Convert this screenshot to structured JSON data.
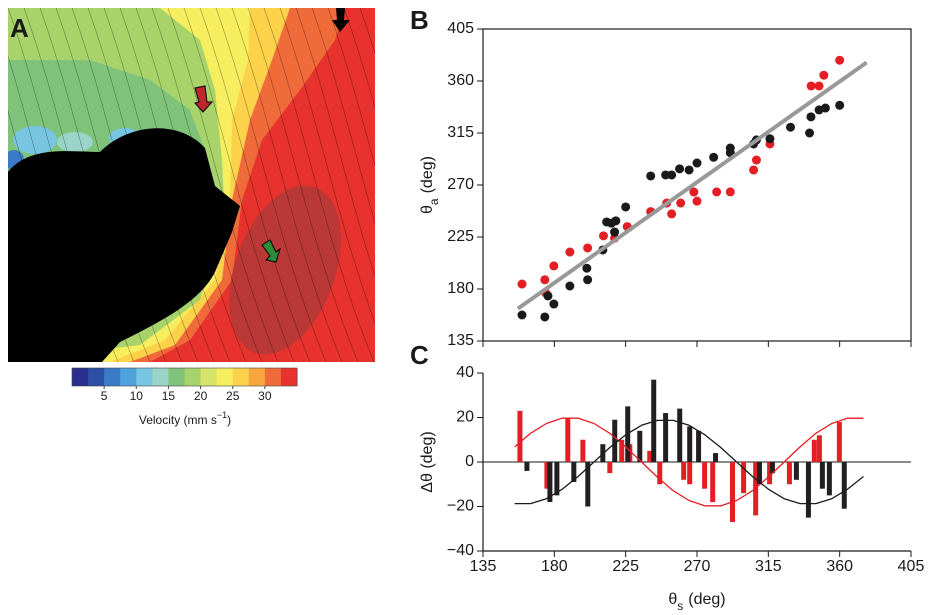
{
  "chart_data": [
    {
      "type": "colorbar",
      "panel": "A",
      "label": [
        "Velocity (mm s",
        "−1",
        ")"
      ],
      "lim": [
        0,
        35
      ],
      "ticks": [
        5,
        10,
        15,
        20,
        25,
        30
      ],
      "colors": [
        "#2b2f8f",
        "#2c4fa8",
        "#3a7bc8",
        "#4ea3dc",
        "#77c5e0",
        "#9ad3c8",
        "#7fc27a",
        "#a8d36a",
        "#d6e36a",
        "#f6ee5e",
        "#fbd24a",
        "#f7a640",
        "#ef6b3a",
        "#e8322e"
      ]
    },
    {
      "type": "scatter",
      "panel": "B",
      "ylabel": [
        "θ",
        "a",
        "(deg)"
      ],
      "xlim": [
        135,
        405
      ],
      "ylim": [
        135,
        405
      ],
      "xticks": [
        135,
        180,
        225,
        270,
        315,
        360,
        405
      ],
      "yticks": [
        135,
        180,
        225,
        270,
        315,
        360,
        405
      ],
      "series": [
        {
          "color": "#e31e24",
          "x": [
            159.6,
            174,
            174.6,
            179.7,
            189.8,
            201,
            211,
            218,
            226,
            240.8,
            250.9,
            254,
            259.7,
            268,
            270,
            282.4,
            291,
            305.7,
            307.5,
            316,
            342,
            347,
            350,
            360
          ],
          "values": [
            184.3,
            188,
            176.5,
            200,
            212,
            215.5,
            226,
            224,
            234,
            247,
            254.4,
            245,
            254.4,
            263.9,
            256,
            264,
            264,
            283,
            291.6,
            305.5,
            355.7,
            355.7,
            365,
            378
          ]
        },
        {
          "color": "#1a1a1a",
          "x": [
            159.6,
            174,
            176,
            179.7,
            189.8,
            200.5,
            201,
            210.6,
            213,
            216,
            218,
            218.8,
            225,
            240.8,
            250.2,
            254,
            259,
            265,
            270,
            280.5,
            291,
            291,
            305.7,
            307.5,
            316,
            329,
            341,
            341.9,
            347,
            351,
            360
          ],
          "values": [
            157.5,
            155.8,
            174,
            167,
            182.6,
            198,
            188,
            213.8,
            238,
            237,
            229.3,
            239,
            251,
            277.8,
            278.7,
            278.7,
            284,
            283,
            289,
            294,
            302,
            298,
            305.5,
            309,
            310,
            320,
            315,
            329,
            335,
            336.6,
            339
          ]
        },
        {
          "type": "line",
          "color": "#999999",
          "x": [
            157,
            377
          ],
          "values": [
            163,
            376
          ]
        }
      ]
    },
    {
      "type": "bar",
      "panel": "C",
      "xlabel": [
        "θ",
        "s",
        "(deg)"
      ],
      "ylabel": "Δθ (deg)",
      "xlim": [
        135,
        405
      ],
      "ylim": [
        -40,
        40
      ],
      "xticks": [
        135,
        180,
        225,
        270,
        315,
        360,
        405
      ],
      "yticks": [
        {
          "value": -40,
          "label": "−40"
        },
        {
          "value": -20,
          "label": "−20"
        },
        0,
        20,
        40
      ],
      "series": [
        {
          "color": "#e31e24",
          "x": [
            158.3,
            175.3,
            188.5,
            198,
            215,
            222.5,
            227.6,
            240.2,
            246.5,
            261.6,
            265.4,
            274.8,
            279.9,
            292.4,
            299.4,
            307,
            315.8,
            328.3,
            344,
            347.2,
            359.8
          ],
          "values": [
            23,
            -12,
            20,
            10,
            -5,
            10,
            8,
            5,
            -10,
            -8,
            -10,
            -12,
            -18,
            -27,
            -14,
            -24,
            -10,
            -10,
            10,
            12,
            18
          ]
        },
        {
          "color": "#231f20",
          "x": [
            162.7,
            177.2,
            181.6,
            192.3,
            201.1,
            210.6,
            218.1,
            226.3,
            233.9,
            242.7,
            250.2,
            259.1,
            265.4,
            271,
            281.7,
            309.4,
            317.6,
            332.7,
            340.3,
            349.1,
            353.5,
            362.9
          ],
          "values": [
            -4,
            -18,
            -15,
            -9,
            -20,
            8,
            19,
            25,
            14,
            37,
            22,
            24,
            16,
            14,
            4,
            -10,
            -5,
            -8,
            -25,
            -12,
            -15,
            -21
          ]
        },
        {
          "type": "line",
          "color": "#e31e24",
          "x": [
            155,
            165,
            175,
            185,
            195,
            205,
            215,
            225,
            235,
            245,
            255,
            265,
            275,
            285,
            295,
            305,
            315,
            325,
            335,
            345,
            355,
            365,
            375
          ],
          "values": [
            6.8,
            12.9,
            17.3,
            19.7,
            19.7,
            17.3,
            12.9,
            6.8,
            0,
            -6.8,
            -12.9,
            -17.3,
            -19.7,
            -19.7,
            -17.3,
            -12.9,
            -6.8,
            0,
            6.8,
            12.9,
            17.3,
            19.7,
            19.7
          ]
        },
        {
          "type": "line",
          "color": "#1a1a1a",
          "x": [
            155,
            165,
            175,
            185,
            195,
            205,
            215,
            225,
            235,
            245,
            255,
            265,
            275,
            285,
            295,
            305,
            315,
            325,
            335,
            345,
            355,
            365,
            375
          ],
          "values": [
            -18.7,
            -18.7,
            -16.5,
            -12.2,
            -6.5,
            0,
            6.5,
            12.2,
            16.5,
            18.7,
            18.7,
            16.5,
            12.2,
            6.5,
            0,
            -6.5,
            -12.2,
            -16.5,
            -18.7,
            -18.7,
            -16.5,
            -12.2,
            -6.5
          ]
        }
      ]
    }
  ]
}
